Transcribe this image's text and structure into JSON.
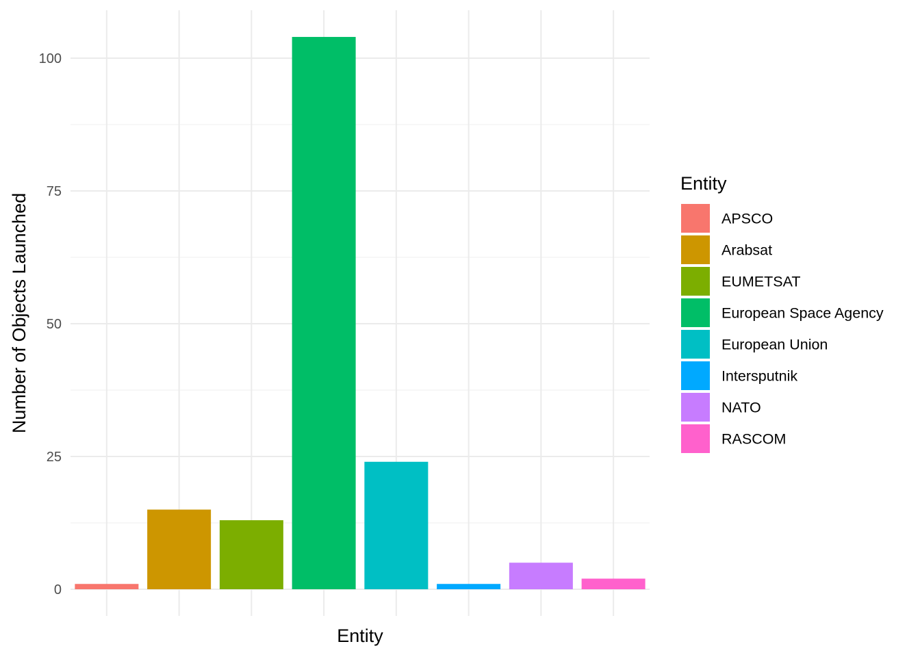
{
  "chart_data": {
    "type": "bar",
    "categories": [
      "APSCO",
      "Arabsat",
      "EUMETSAT",
      "European Space Agency",
      "European Union",
      "Intersputnik",
      "NATO",
      "RASCOM"
    ],
    "values": [
      1,
      15,
      13,
      104,
      24,
      1,
      5,
      2
    ],
    "colors": [
      "#F8766D",
      "#CD9600",
      "#7CAE00",
      "#00BE67",
      "#00BFC4",
      "#00A9FF",
      "#C77CFF",
      "#FF61CC"
    ],
    "xlabel": "Entity",
    "ylabel": "Number of Objects Launched",
    "ylim": [
      0,
      104
    ],
    "y_ticks": [
      0,
      25,
      50,
      75,
      100
    ],
    "y_tick_labels": [
      "0",
      "25",
      "50",
      "75",
      "100"
    ],
    "x_tick_labels_shown": false,
    "grid": true,
    "legend": {
      "title": "Entity",
      "position": "right"
    }
  }
}
